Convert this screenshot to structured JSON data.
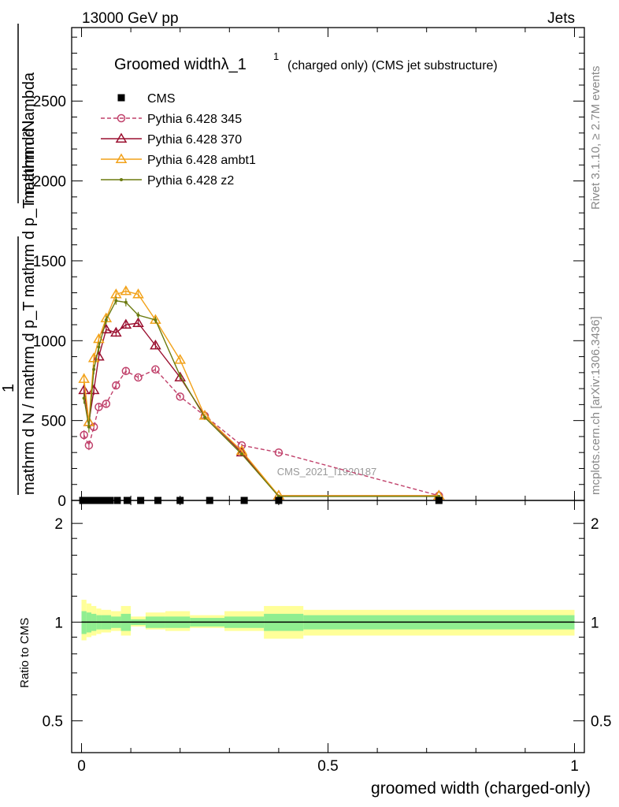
{
  "header": {
    "left": "13000 GeV pp",
    "right": "Jets"
  },
  "title": {
    "main": "Groomed widthλ_1",
    "sup": "1",
    "sub": "(charged only) (CMS jet substructure)"
  },
  "side_labels": {
    "rivet": "Rivet 3.1.10, ≥ 2.7M events",
    "mcplots": "mcplots.cern.ch [arXiv:1306.3436]"
  },
  "watermark": "CMS_2021_I1920187",
  "axes": {
    "ylabel_top_numerator": "mathrm d²N",
    "ylabel_top_fraction_num": "1",
    "ylabel_top_denominator": "mathrm d N / mathrm d p_T mathrm d p_T mathrm d lambda",
    "ylabel_ratio": "Ratio to CMS",
    "xlabel": "groomed width (charged-only)",
    "x_ticks": [
      {
        "v": 0,
        "label": "0"
      },
      {
        "v": 0.5,
        "label": "0.5"
      },
      {
        "v": 1,
        "label": "1"
      }
    ],
    "y_ticks": [
      {
        "v": 0,
        "label": "0"
      },
      {
        "v": 500,
        "label": "500"
      },
      {
        "v": 1000,
        "label": "1000"
      },
      {
        "v": 1500,
        "label": "1500"
      },
      {
        "v": 2000,
        "label": "2000"
      },
      {
        "v": 2500,
        "label": "2500"
      }
    ],
    "ratio_ticks": [
      {
        "v": 0.5,
        "label": "0.5"
      },
      {
        "v": 1,
        "label": "1"
      },
      {
        "v": 2,
        "label": "2"
      }
    ]
  },
  "chart_data": {
    "type": "line",
    "xlim": [
      -0.02,
      1.02
    ],
    "ylim": [
      0,
      2960
    ],
    "ratio_ylim": [
      0.4,
      2.35
    ],
    "ratio_scale": "log",
    "legend_placement": "top-left",
    "cms": {
      "name": "CMS",
      "x": [
        0.0025,
        0.0075,
        0.0125,
        0.0175,
        0.0225,
        0.0275,
        0.035,
        0.045,
        0.0575,
        0.0725,
        0.0925,
        0.12,
        0.155,
        0.2,
        0.26,
        0.33,
        0.4,
        0.725
      ],
      "y": [
        0,
        0,
        0,
        0,
        0,
        0,
        0,
        0,
        0,
        0,
        0,
        0,
        0,
        0,
        0,
        0,
        0,
        0
      ]
    },
    "series": [
      {
        "name": "Pythia 6.428 345",
        "color": "#c0406a",
        "marker": "circle-open",
        "dashed": true,
        "x": [
          0.005,
          0.015,
          0.025,
          0.035,
          0.05,
          0.07,
          0.09,
          0.115,
          0.15,
          0.2,
          0.25,
          0.325,
          0.4,
          0.725
        ],
        "y": [
          410,
          345,
          460,
          585,
          605,
          720,
          810,
          770,
          820,
          650,
          530,
          345,
          300,
          30
        ],
        "err": [
          30,
          30,
          25,
          25,
          22,
          20,
          20,
          15,
          15,
          12,
          12,
          10,
          8,
          3
        ]
      },
      {
        "name": "Pythia 6.428 370",
        "color": "#9b1030",
        "marker": "triangle-open",
        "dashed": false,
        "x": [
          0.005,
          0.015,
          0.025,
          0.035,
          0.05,
          0.07,
          0.09,
          0.115,
          0.15,
          0.2,
          0.25,
          0.325,
          0.4,
          0.725
        ],
        "y": [
          690,
          490,
          690,
          900,
          1070,
          1050,
          1100,
          1110,
          970,
          770,
          530,
          300,
          30,
          30
        ],
        "err": [
          35,
          35,
          30,
          30,
          25,
          25,
          25,
          20,
          20,
          15,
          12,
          10,
          8,
          3
        ]
      },
      {
        "name": "Pythia 6.428 ambt1",
        "color": "#f2a21a",
        "marker": "triangle-open",
        "dashed": false,
        "x": [
          0.005,
          0.015,
          0.025,
          0.035,
          0.05,
          0.07,
          0.09,
          0.115,
          0.15,
          0.2,
          0.25,
          0.325,
          0.4,
          0.725
        ],
        "y": [
          760,
          490,
          890,
          1010,
          1140,
          1290,
          1310,
          1290,
          1130,
          880,
          530,
          310,
          30,
          30
        ],
        "err": [
          35,
          35,
          30,
          30,
          25,
          25,
          25,
          20,
          20,
          15,
          12,
          10,
          8,
          3
        ]
      },
      {
        "name": "Pythia 6.428 z2",
        "color": "#6b7a0f",
        "marker": "dot",
        "dashed": false,
        "x": [
          0.005,
          0.015,
          0.025,
          0.035,
          0.05,
          0.07,
          0.09,
          0.115,
          0.15,
          0.2,
          0.25,
          0.325,
          0.4,
          0.725
        ],
        "y": [
          640,
          460,
          820,
          960,
          1130,
          1250,
          1240,
          1160,
          1130,
          780,
          520,
          290,
          25,
          25
        ],
        "err": [
          35,
          35,
          30,
          30,
          25,
          25,
          25,
          20,
          20,
          15,
          12,
          10,
          8,
          3
        ]
      }
    ],
    "ratio_bands": {
      "bins": [
        {
          "lo": 0.0,
          "hi": 0.01,
          "inner": [
            0.92,
            1.08
          ],
          "outer": [
            0.88,
            1.17
          ]
        },
        {
          "lo": 0.01,
          "hi": 0.02,
          "inner": [
            0.93,
            1.07
          ],
          "outer": [
            0.9,
            1.14
          ]
        },
        {
          "lo": 0.02,
          "hi": 0.03,
          "inner": [
            0.94,
            1.06
          ],
          "outer": [
            0.91,
            1.12
          ]
        },
        {
          "lo": 0.03,
          "hi": 0.04,
          "inner": [
            0.95,
            1.05
          ],
          "outer": [
            0.92,
            1.1
          ]
        },
        {
          "lo": 0.04,
          "hi": 0.06,
          "inner": [
            0.95,
            1.05
          ],
          "outer": [
            0.93,
            1.09
          ]
        },
        {
          "lo": 0.06,
          "hi": 0.08,
          "inner": [
            0.96,
            1.04
          ],
          "outer": [
            0.94,
            1.08
          ]
        },
        {
          "lo": 0.08,
          "hi": 0.1,
          "inner": [
            0.94,
            1.06
          ],
          "outer": [
            0.91,
            1.12
          ]
        },
        {
          "lo": 0.1,
          "hi": 0.13,
          "inner": [
            0.98,
            1.02
          ],
          "outer": [
            0.97,
            1.04
          ]
        },
        {
          "lo": 0.13,
          "hi": 0.17,
          "inner": [
            0.96,
            1.04
          ],
          "outer": [
            0.95,
            1.07
          ]
        },
        {
          "lo": 0.17,
          "hi": 0.22,
          "inner": [
            0.96,
            1.04
          ],
          "outer": [
            0.94,
            1.08
          ]
        },
        {
          "lo": 0.22,
          "hi": 0.29,
          "inner": [
            0.97,
            1.03
          ],
          "outer": [
            0.96,
            1.05
          ]
        },
        {
          "lo": 0.29,
          "hi": 0.37,
          "inner": [
            0.96,
            1.04
          ],
          "outer": [
            0.94,
            1.08
          ]
        },
        {
          "lo": 0.37,
          "hi": 0.45,
          "inner": [
            0.94,
            1.06
          ],
          "outer": [
            0.89,
            1.12
          ]
        },
        {
          "lo": 0.45,
          "hi": 1.0,
          "inner": [
            0.95,
            1.05
          ],
          "outer": [
            0.91,
            1.09
          ]
        }
      ],
      "inner_color": "#90ee90",
      "outer_color": "#ffff99"
    }
  }
}
